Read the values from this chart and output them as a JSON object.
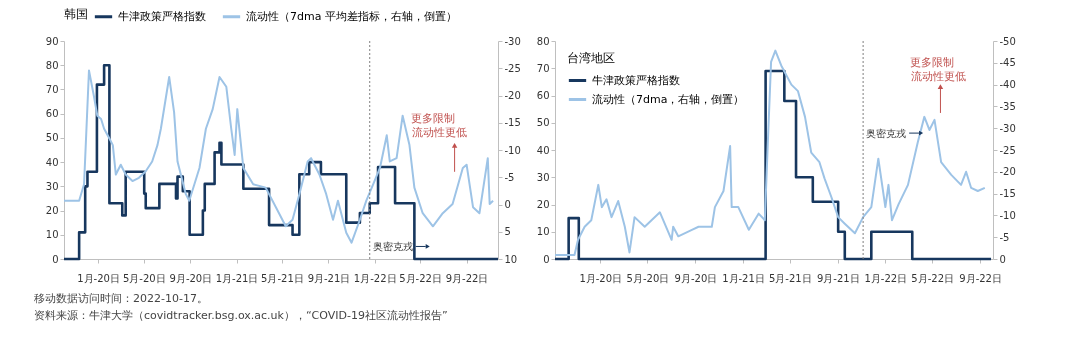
{
  "chart_data": [
    {
      "type": "line",
      "legend_title": "韩国",
      "legend": "top",
      "grid": false,
      "xlim": [
        "2019-10-03",
        "2022-11-23"
      ],
      "xticks": [
        {
          "value": "2020-01-01",
          "label": "1月-20日"
        },
        {
          "value": "2020-05-01",
          "label": "5月-20日"
        },
        {
          "value": "2020-09-01",
          "label": "9月-20日"
        },
        {
          "value": "2021-01-01",
          "label": "1月-21日"
        },
        {
          "value": "2021-05-01",
          "label": "5月-21日"
        },
        {
          "value": "2021-09-01",
          "label": "9月-21日"
        },
        {
          "value": "2022-01-01",
          "label": "1月-22日"
        },
        {
          "value": "2022-05-01",
          "label": "5月-22日"
        },
        {
          "value": "2022-09-01",
          "label": "9月-22日"
        }
      ],
      "ylim": [
        0,
        90
      ],
      "yticks": [
        0,
        10,
        20,
        30,
        40,
        50,
        60,
        70,
        80,
        90
      ],
      "y2lim": [
        10,
        -30
      ],
      "y2ticks": [
        10,
        5,
        0,
        -5,
        -10,
        -15,
        -20,
        -25,
        -30
      ],
      "series": [
        {
          "name": "牛津政策严格指数",
          "type": "step",
          "color": "#17375e",
          "x": [
            "2019-10-03",
            "2019-11-12",
            "2019-11-28",
            "2019-12-04",
            "2019-12-29",
            "2020-01-17",
            "2020-01-31",
            "2020-03-05",
            "2020-03-14",
            "2020-05-02",
            "2020-05-06",
            "2020-06-11",
            "2020-07-25",
            "2020-07-29",
            "2020-08-12",
            "2020-08-30",
            "2020-10-04",
            "2020-10-09",
            "2020-11-04",
            "2020-11-17",
            "2020-11-22",
            "2021-01-19",
            "2021-03-28",
            "2021-05-29",
            "2021-06-16",
            "2021-07-12",
            "2021-08-12",
            "2021-10-18",
            "2021-11-23",
            "2021-12-19",
            "2022-01-10",
            "2022-02-24",
            "2022-04-16",
            "2022-11-23"
          ],
          "values": [
            0,
            11,
            30,
            36,
            72,
            80,
            23,
            18,
            36,
            27,
            21,
            31,
            25,
            34,
            28,
            10,
            20,
            31,
            44,
            48,
            39,
            29,
            14,
            10,
            35,
            40,
            35,
            15,
            19,
            23,
            38,
            23,
            0,
            0
          ]
        },
        {
          "name": "流动性（7dma 平均差指标，右轴，倒置）",
          "type": "line",
          "axis": "y2",
          "color": "#9dc3e6",
          "x": [
            "2019-10-03",
            "2019-11-12",
            "2019-11-25",
            "2019-12-08",
            "2019-12-21",
            "2019-12-30",
            "2020-01-09",
            "2020-01-17",
            "2020-01-31",
            "2020-02-09",
            "2020-02-17",
            "2020-03-01",
            "2020-03-14",
            "2020-04-01",
            "2020-04-18",
            "2020-05-06",
            "2020-05-23",
            "2020-06-06",
            "2020-06-15",
            "2020-07-07",
            "2020-07-20",
            "2020-07-29",
            "2020-08-20",
            "2020-08-29",
            "2020-09-25",
            "2020-10-12",
            "2020-10-30",
            "2020-11-17",
            "2020-12-05",
            "2020-12-18",
            "2020-12-27",
            "2021-01-03",
            "2021-01-19",
            "2021-02-14",
            "2021-03-19",
            "2021-04-15",
            "2021-05-11",
            "2021-05-29",
            "2021-06-16",
            "2021-07-08",
            "2021-07-17",
            "2021-08-08",
            "2021-08-26",
            "2021-09-13",
            "2021-09-26",
            "2021-10-18",
            "2021-11-01",
            "2021-11-23",
            "2021-12-10",
            "2021-12-28",
            "2022-01-15",
            "2022-02-02",
            "2022-02-10",
            "2022-02-28",
            "2022-03-16",
            "2022-04-03",
            "2022-04-16",
            "2022-05-08",
            "2022-06-04",
            "2022-06-30",
            "2022-07-26",
            "2022-08-22",
            "2022-09-01",
            "2022-09-18",
            "2022-10-05",
            "2022-10-27",
            "2022-11-01",
            "2022-11-10"
          ],
          "values": [
            -0.7,
            -0.7,
            -3.7,
            -24.6,
            -19.9,
            -16.3,
            -15.7,
            -13.9,
            -12.1,
            -10.9,
            -5.5,
            -7.3,
            -5.5,
            -4.3,
            -4.9,
            -6.1,
            -7.9,
            -10.9,
            -13.9,
            -23.4,
            -16.9,
            -7.9,
            -1.9,
            -0.7,
            -6.7,
            -13.9,
            -17.5,
            -23.4,
            -21.6,
            -13.9,
            -9.1,
            -17.5,
            -6.7,
            -3.7,
            -3.1,
            0.5,
            4.0,
            2.8,
            -1.9,
            -7.9,
            -8.5,
            -5.5,
            -1.9,
            2.8,
            -0.7,
            5.2,
            7.0,
            2.8,
            -0.7,
            -3.7,
            -6.7,
            -12.7,
            -7.9,
            -8.5,
            -16.3,
            -10.9,
            -3.1,
            1.6,
            4.0,
            1.6,
            -0.1,
            -6.7,
            -7.3,
            0.5,
            1.6,
            -8.5,
            -0.1,
            -0.7
          ]
        }
      ],
      "ref_lines": [
        {
          "axis": "x",
          "value": "2021-12-19",
          "label": "奥密克戎",
          "line_style": "dotted"
        }
      ],
      "annotations": [
        "更多限制",
        "流动性更低",
        "移动数据访问时间：2022-10-17。",
        "资料来源：牛津大学（covidtracker.bsg.ox.ac.uk），“COVID-19社区流动性报告”"
      ]
    },
    {
      "type": "line",
      "legend_title": "台湾地区",
      "legend": "top left",
      "grid": false,
      "xlim": [
        "2019-09-07",
        "2022-10-04"
      ],
      "xticks": [
        {
          "value": "2020-01-01",
          "label": "1月-20日"
        },
        {
          "value": "2020-05-01",
          "label": "5月-20日"
        },
        {
          "value": "2020-09-01",
          "label": "9月-20日"
        },
        {
          "value": "2021-01-01",
          "label": "1月-21日"
        },
        {
          "value": "2021-05-01",
          "label": "5月-21日"
        },
        {
          "value": "2021-09-01",
          "label": "9月-21日"
        },
        {
          "value": "2022-01-01",
          "label": "1月-22日"
        },
        {
          "value": "2022-05-01",
          "label": "5月-22日"
        },
        {
          "value": "2022-09-01",
          "label": "9月-22日"
        }
      ],
      "ylim": [
        0,
        80
      ],
      "yticks": [
        0,
        10,
        20,
        30,
        40,
        50,
        60,
        70,
        80
      ],
      "y2lim": [
        0,
        -50
      ],
      "y2ticks": [
        0,
        -5,
        -10,
        -15,
        -20,
        -25,
        -30,
        -35,
        -40,
        -45,
        -50
      ],
      "series": [
        {
          "name": "牛津政策严格指数",
          "type": "step",
          "color": "#17375e",
          "x": [
            "2019-09-07",
            "2019-10-12",
            "2019-11-07",
            "2021-02-28",
            "2021-04-17",
            "2021-05-17",
            "2021-06-29",
            "2021-09-02",
            "2021-09-19",
            "2021-11-26",
            "2022-03-11",
            "2022-09-29"
          ],
          "values": [
            0,
            15,
            0,
            69,
            58,
            30,
            21,
            10,
            0,
            10,
            0,
            0
          ]
        },
        {
          "name": "流动性（7dma，右轴，倒置）",
          "type": "line",
          "axis": "y2",
          "color": "#9dc3e6",
          "x": [
            "2019-09-07",
            "2019-10-27",
            "2019-11-05",
            "2019-11-22",
            "2019-12-09",
            "2019-12-27",
            "2020-01-05",
            "2020-01-17",
            "2020-01-30",
            "2020-02-16",
            "2020-03-04",
            "2020-03-16",
            "2020-03-29",
            "2020-04-24",
            "2020-06-02",
            "2020-07-02",
            "2020-07-06",
            "2020-07-19",
            "2020-08-23",
            "2020-09-09",
            "2020-10-13",
            "2020-10-21",
            "2020-11-12",
            "2020-11-29",
            "2020-12-03",
            "2020-12-20",
            "2021-01-16",
            "2021-02-10",
            "2021-02-26",
            "2021-03-06",
            "2021-03-14",
            "2021-03-25",
            "2021-04-09",
            "2021-05-05",
            "2021-05-22",
            "2021-06-09",
            "2021-06-25",
            "2021-07-16",
            "2021-07-29",
            "2021-08-16",
            "2021-09-02",
            "2021-09-19",
            "2021-10-15",
            "2021-11-05",
            "2021-11-26",
            "2021-12-14",
            "2022-01-01",
            "2022-01-09",
            "2022-01-18",
            "2022-02-04",
            "2022-02-28",
            "2022-03-25",
            "2022-04-11",
            "2022-04-24",
            "2022-05-07",
            "2022-05-24",
            "2022-06-19",
            "2022-07-14",
            "2022-07-27",
            "2022-08-09",
            "2022-08-26",
            "2022-09-13"
          ],
          "values": [
            -0.9,
            -0.9,
            -4.4,
            -7.4,
            -8.9,
            -17.0,
            -11.9,
            -13.7,
            -9.6,
            -13.3,
            -7.4,
            -1.5,
            -9.6,
            -7.4,
            -10.7,
            -4.4,
            -7.4,
            -5.2,
            -6.7,
            -7.4,
            -7.4,
            -11.9,
            -15.6,
            -25.9,
            -11.9,
            -11.9,
            -6.7,
            -10.4,
            -8.9,
            -27.4,
            -45.2,
            -47.8,
            -44.4,
            -40.0,
            -38.5,
            -32.6,
            -24.4,
            -22.2,
            -18.5,
            -14.1,
            -9.6,
            -8.1,
            -5.9,
            -9.6,
            -11.9,
            -23.0,
            -11.9,
            -17.0,
            -8.9,
            -12.6,
            -17.0,
            -26.7,
            -32.6,
            -29.6,
            -31.9,
            -22.2,
            -19.3,
            -17.0,
            -20.0,
            -16.3,
            -15.6,
            -16.3
          ]
        }
      ],
      "ref_lines": [
        {
          "axis": "x",
          "value": "2021-11-05",
          "label": "奥密克戎",
          "line_style": "dotted"
        }
      ],
      "annotations": [
        "更多限制",
        "流动性更低"
      ]
    }
  ]
}
